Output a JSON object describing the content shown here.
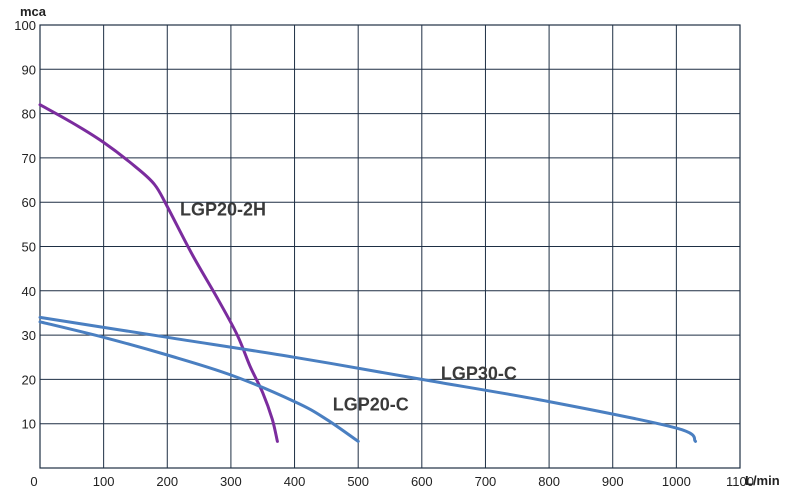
{
  "chart_data": {
    "type": "line",
    "ylabel": "mca",
    "xlabel": "L/min",
    "xlim": [
      0,
      1100
    ],
    "ylim": [
      0,
      100
    ],
    "x_ticks": [
      "0",
      "100",
      "200",
      "300",
      "400",
      "500",
      "600",
      "700",
      "800",
      "900",
      "1000",
      "1100"
    ],
    "y_ticks": [
      "10",
      "20",
      "30",
      "40",
      "50",
      "60",
      "70",
      "80",
      "90",
      "100"
    ],
    "grid": true,
    "series": [
      {
        "name": "LGP20-2H",
        "color": "#7b2c9e",
        "points": [
          [
            0,
            82
          ],
          [
            50,
            78
          ],
          [
            100,
            73.5
          ],
          [
            150,
            68
          ],
          [
            180,
            64
          ],
          [
            200,
            59
          ],
          [
            240,
            48
          ],
          [
            280,
            38
          ],
          [
            310,
            30
          ],
          [
            330,
            23
          ],
          [
            350,
            17
          ],
          [
            365,
            11
          ],
          [
            373,
            6
          ]
        ]
      },
      {
        "name": "LGP30-C",
        "color": "#4a7fc1",
        "points": [
          [
            0,
            34
          ],
          [
            200,
            29.5
          ],
          [
            400,
            25
          ],
          [
            600,
            20
          ],
          [
            800,
            15
          ],
          [
            1000,
            9
          ],
          [
            1030,
            6
          ]
        ]
      },
      {
        "name": "LGP20-C",
        "color": "#4a7fc1",
        "points": [
          [
            0,
            33
          ],
          [
            100,
            29.5
          ],
          [
            200,
            25.5
          ],
          [
            300,
            21
          ],
          [
            400,
            15
          ],
          [
            450,
            11
          ],
          [
            500,
            6
          ]
        ]
      }
    ],
    "annotations": [
      {
        "text": "LGP20-2H",
        "x": 220,
        "y": 57
      },
      {
        "text": "LGP30-C",
        "x": 630,
        "y": 20
      },
      {
        "text": "LGP20-C",
        "x": 460,
        "y": 13
      }
    ]
  }
}
